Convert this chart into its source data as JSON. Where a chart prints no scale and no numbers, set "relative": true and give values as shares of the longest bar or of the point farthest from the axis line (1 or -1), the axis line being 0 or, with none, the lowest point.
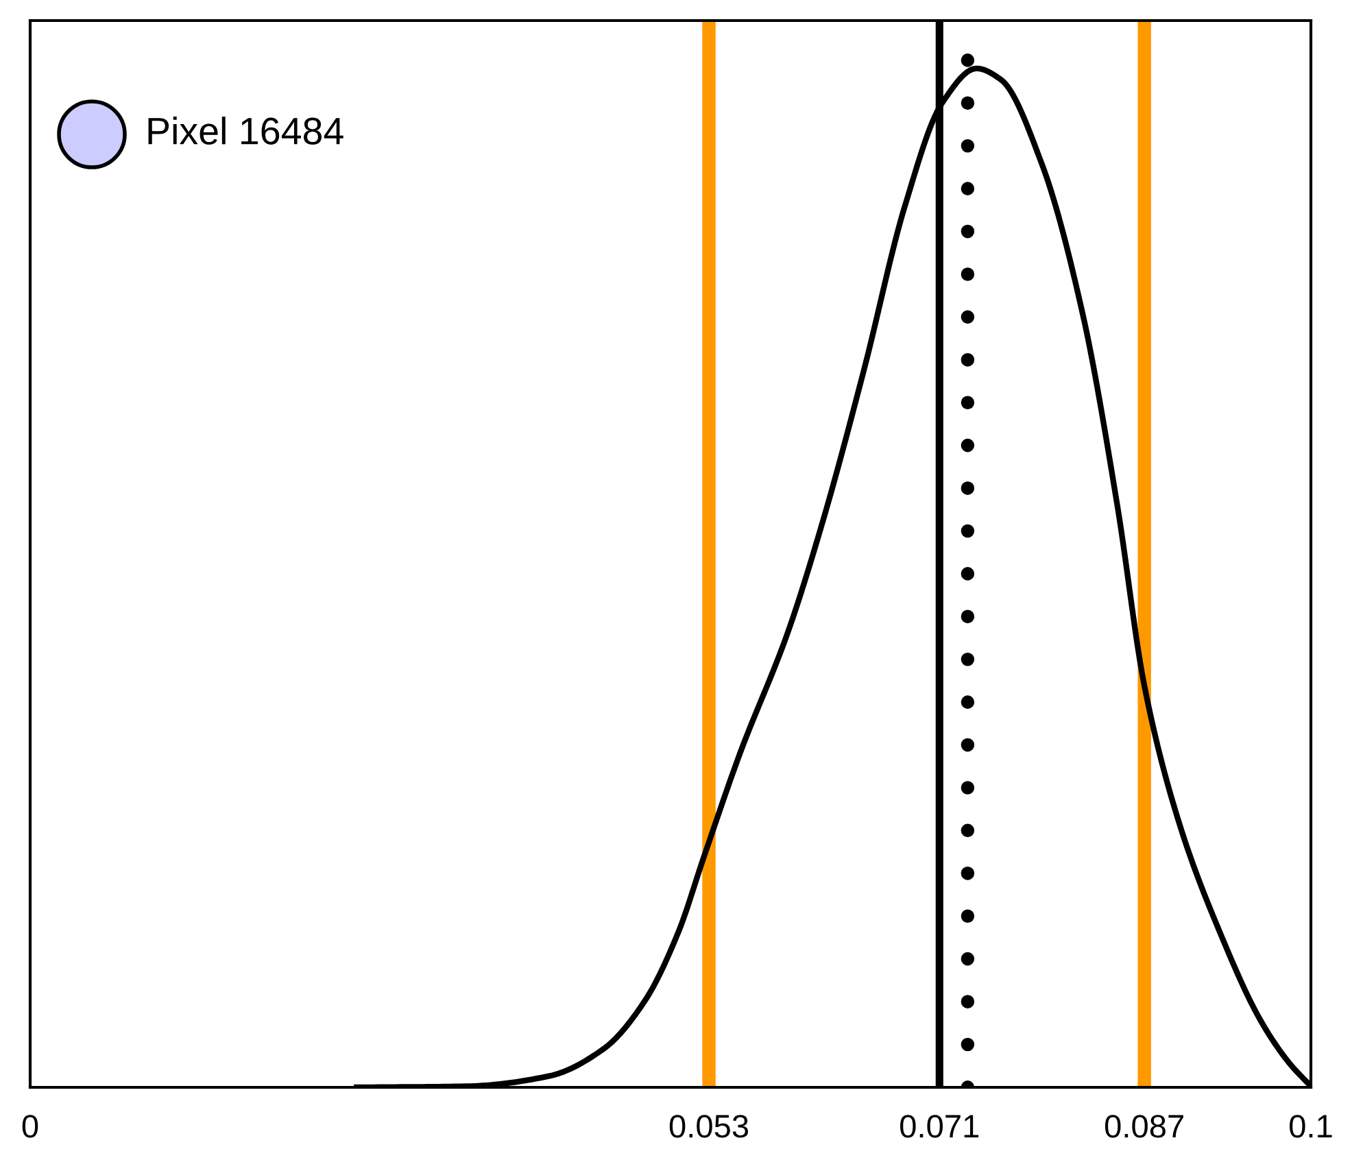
{
  "chart_data": {
    "type": "line",
    "relative": true,
    "x": [
      0.0255,
      0.034,
      0.0405,
      0.0448,
      0.048,
      0.0506,
      0.0526,
      0.0554,
      0.0592,
      0.0619,
      0.0651,
      0.0683,
      0.0712,
      0.0739,
      0.0758,
      0.079,
      0.0822,
      0.0849,
      0.087,
      0.0897,
      0.0929,
      0.0961,
      0.0983,
      0.1
    ],
    "series": [
      {
        "color": "#000000",
        "values": [
          0,
          0.001,
          0.011,
          0.038,
          0.085,
          0.152,
          0.226,
          0.327,
          0.448,
          0.556,
          0.704,
          0.865,
          0.966,
          1.0,
          0.989,
          0.906,
          0.758,
          0.57,
          0.394,
          0.26,
          0.152,
          0.065,
          0.024,
          0.001
        ]
      }
    ],
    "xlim": [
      0,
      0.1
    ],
    "xticks": [
      0,
      0.053,
      0.071,
      0.087,
      0.1
    ],
    "ref_lines": [
      {
        "axis": "x",
        "value": 0.053,
        "color": "#ff9900",
        "line_style": "solid"
      },
      {
        "axis": "x",
        "value": 0.087,
        "color": "#ff9900",
        "line_style": "solid"
      },
      {
        "axis": "x",
        "value": 0.071,
        "color": "#000000",
        "line_style": "solid"
      },
      {
        "axis": "x",
        "value": 0.0732,
        "color": "#000000",
        "line_style": "dotted"
      }
    ],
    "annotations": [
      "Pixel 16484"
    ],
    "legend": false,
    "marker": "none",
    "line_style": "solid",
    "tick_labels": "x"
  }
}
